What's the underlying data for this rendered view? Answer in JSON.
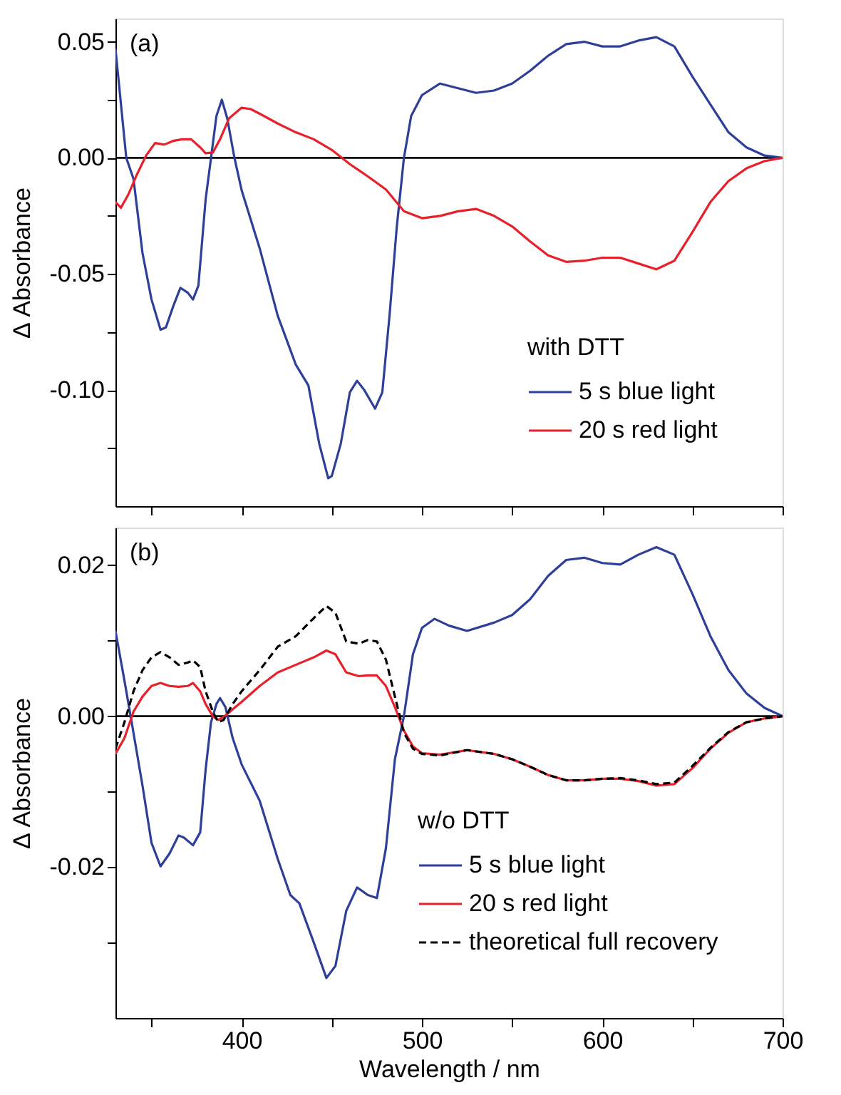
{
  "chart_data": [
    {
      "type": "line",
      "ylabel": "Δ Absorbance",
      "legend_title": "with DTT",
      "legend": "bottom right",
      "grid": false,
      "tick_labels": "y",
      "annotations": [
        "(a)"
      ],
      "xlim": [
        330,
        700
      ],
      "xticks": [
        {
          "value": 350,
          "label": null
        },
        400,
        {
          "value": 450,
          "label": null
        },
        500,
        {
          "value": 550,
          "label": null
        },
        600,
        {
          "value": 650,
          "label": null
        },
        700
      ],
      "ylim": [
        -0.15,
        0.06
      ],
      "yticks": [
        {
          "value": -0.125,
          "label": null
        },
        {
          "value": -0.1,
          "label": "-0.10"
        },
        {
          "value": -0.075,
          "label": null
        },
        {
          "value": -0.05,
          "label": "-0.05"
        },
        {
          "value": -0.025,
          "label": null
        },
        {
          "value": 0,
          "label": "0.00"
        },
        {
          "value": 0.025,
          "label": null
        },
        {
          "value": 0.05,
          "label": "0.05"
        }
      ],
      "ref_lines": [
        {
          "axis": "y",
          "value": 0,
          "color": "#000000"
        }
      ],
      "series": [
        {
          "name": "5 s blue light",
          "color": "#2e3f9a",
          "line_style": "solid",
          "x": [
            330,
            336,
            340,
            345,
            350,
            355,
            358,
            362,
            366,
            370,
            373,
            376,
            380,
            383,
            386,
            389,
            392,
            396,
            400,
            410,
            420,
            430,
            437,
            443,
            448,
            450,
            455,
            460,
            464,
            468,
            474,
            478,
            482,
            486,
            490,
            494,
            500,
            510,
            520,
            530,
            540,
            550,
            560,
            570,
            580,
            590,
            600,
            610,
            620,
            630,
            640,
            650,
            660,
            670,
            680,
            690,
            700
          ],
          "values": [
            0.047,
            0.0,
            -0.009,
            -0.041,
            -0.061,
            -0.074,
            -0.073,
            -0.064,
            -0.056,
            -0.058,
            -0.061,
            -0.055,
            -0.018,
            0.0,
            0.018,
            0.025,
            0.017,
            0.0,
            -0.014,
            -0.039,
            -0.068,
            -0.089,
            -0.098,
            -0.123,
            -0.138,
            -0.137,
            -0.123,
            -0.101,
            -0.096,
            -0.1,
            -0.108,
            -0.101,
            -0.068,
            -0.03,
            0.0,
            0.018,
            0.027,
            0.032,
            0.03,
            0.028,
            0.029,
            0.032,
            0.0375,
            0.044,
            0.049,
            0.05,
            0.048,
            0.048,
            0.0505,
            0.052,
            0.048,
            0.035,
            0.023,
            0.011,
            0.0045,
            0.001,
            0.0
          ]
        },
        {
          "name": "20 s red light",
          "color": "#e8202a",
          "line_style": "solid",
          "x": [
            330,
            333,
            337,
            342,
            347,
            352,
            357,
            362,
            367,
            372,
            377,
            380,
            384,
            388,
            393,
            400,
            405,
            410,
            420,
            430,
            440,
            450,
            460,
            470,
            480,
            490,
            500,
            510,
            520,
            530,
            540,
            550,
            560,
            570,
            580,
            590,
            600,
            610,
            620,
            630,
            640,
            650,
            660,
            670,
            680,
            690,
            700
          ],
          "values": [
            -0.019,
            -0.0215,
            -0.016,
            -0.007,
            0.001,
            0.0064,
            0.0057,
            0.0073,
            0.008,
            0.008,
            0.0045,
            0.002,
            0.0023,
            0.008,
            0.017,
            0.0216,
            0.021,
            0.019,
            0.0148,
            0.011,
            0.008,
            0.0034,
            -0.0027,
            -0.008,
            -0.0136,
            -0.023,
            -0.026,
            -0.025,
            -0.023,
            -0.022,
            -0.025,
            -0.0295,
            -0.036,
            -0.042,
            -0.0448,
            -0.0443,
            -0.043,
            -0.043,
            -0.0455,
            -0.048,
            -0.0443,
            -0.032,
            -0.019,
            -0.01,
            -0.0045,
            -0.0014,
            0.0
          ]
        }
      ]
    },
    {
      "type": "line",
      "xlabel": "Wavelength / nm",
      "ylabel": "Δ Absorbance",
      "legend_title": "w/o DTT",
      "legend": "bottom right",
      "grid": false,
      "annotations": [
        "(b)"
      ],
      "xlim": [
        330,
        700
      ],
      "xticks": [
        {
          "value": 350,
          "label": null
        },
        400,
        {
          "value": 450,
          "label": null
        },
        500,
        {
          "value": 550,
          "label": null
        },
        600,
        {
          "value": 650,
          "label": null
        },
        700
      ],
      "ylim": [
        -0.04,
        0.025
      ],
      "yticks": [
        {
          "value": -0.03,
          "label": null
        },
        {
          "value": -0.02,
          "label": "-0.02"
        },
        {
          "value": -0.01,
          "label": null
        },
        {
          "value": 0,
          "label": "0.00"
        },
        {
          "value": 0.01,
          "label": null
        },
        {
          "value": 0.02,
          "label": "0.02"
        }
      ],
      "ref_lines": [
        {
          "axis": "y",
          "value": 0,
          "color": "#000000"
        }
      ],
      "series": [
        {
          "name": "5 s blue light",
          "color": "#2e3f9a",
          "line_style": "solid",
          "x": [
            330,
            335,
            340,
            345,
            350,
            355,
            360,
            365,
            368,
            373,
            377,
            380,
            383,
            386,
            388,
            391,
            395,
            400,
            410,
            420,
            427,
            432,
            440,
            447,
            452,
            458,
            464,
            470,
            475,
            480,
            485,
            490,
            495,
            500,
            507,
            515,
            525,
            540,
            550,
            560,
            570,
            580,
            590,
            600,
            610,
            620,
            630,
            640,
            650,
            660,
            670,
            680,
            690,
            700
          ],
          "values": [
            0.0113,
            0.0047,
            -0.0022,
            -0.0092,
            -0.0168,
            -0.0199,
            -0.0182,
            -0.0158,
            -0.0161,
            -0.0171,
            -0.0154,
            -0.0071,
            -0.0008,
            0.0016,
            0.0024,
            0.0012,
            -0.0029,
            -0.0064,
            -0.0112,
            -0.0189,
            -0.0237,
            -0.0248,
            -0.03,
            -0.0347,
            -0.0331,
            -0.0258,
            -0.0227,
            -0.0237,
            -0.0241,
            -0.0175,
            -0.0057,
            0.0,
            0.0082,
            0.0117,
            0.0129,
            0.012,
            0.0113,
            0.0124,
            0.0134,
            0.0155,
            0.0186,
            0.0207,
            0.021,
            0.0203,
            0.0201,
            0.0214,
            0.0224,
            0.0214,
            0.0162,
            0.0106,
            0.0061,
            0.003,
            0.0011,
            0.0
          ]
        },
        {
          "name": "20 s red light",
          "color": "#e8202a",
          "line_style": "solid",
          "x": [
            330,
            335,
            340,
            345,
            350,
            355,
            360,
            365,
            370,
            373,
            377,
            380,
            384,
            387,
            390,
            395,
            400,
            410,
            420,
            430,
            440,
            447,
            452,
            458,
            465,
            470,
            475,
            480,
            485,
            490,
            495,
            500,
            510,
            525,
            540,
            550,
            560,
            570,
            580,
            590,
            600,
            610,
            620,
            630,
            640,
            650,
            660,
            670,
            680,
            690,
            700
          ],
          "values": [
            -0.005,
            -0.0029,
            0.0006,
            0.0026,
            0.004,
            0.0044,
            0.004,
            0.0039,
            0.004,
            0.0044,
            0.0033,
            0.0016,
            0.0,
            -0.0005,
            -0.0001,
            0.0009,
            0.0019,
            0.004,
            0.0058,
            0.0068,
            0.0078,
            0.0087,
            0.0082,
            0.0058,
            0.0053,
            0.0054,
            0.0054,
            0.004,
            0.0012,
            -0.0019,
            -0.004,
            -0.0049,
            -0.0051,
            -0.0045,
            -0.005,
            -0.0057,
            -0.0067,
            -0.0078,
            -0.0085,
            -0.0085,
            -0.0083,
            -0.0083,
            -0.0086,
            -0.0092,
            -0.009,
            -0.0069,
            -0.0043,
            -0.0022,
            -0.0008,
            -0.0003,
            0.0
          ]
        },
        {
          "name": "theoretical full recovery",
          "color": "#000000",
          "line_style": "dashed",
          "x": [
            330,
            335,
            340,
            345,
            350,
            355,
            360,
            365,
            370,
            373,
            377,
            380,
            384,
            387,
            390,
            395,
            400,
            410,
            420,
            430,
            440,
            447,
            452,
            458,
            465,
            470,
            475,
            480,
            485,
            490,
            495,
            500,
            510,
            525,
            540,
            550,
            560,
            570,
            580,
            590,
            600,
            610,
            620,
            630,
            640,
            650,
            660,
            670,
            680,
            690,
            700
          ],
          "values": [
            -0.0043,
            -0.0008,
            0.0033,
            0.0061,
            0.0078,
            0.0085,
            0.0078,
            0.0068,
            0.0071,
            0.0074,
            0.0065,
            0.0033,
            0.0006,
            -0.0008,
            -0.0005,
            0.0016,
            0.0033,
            0.0061,
            0.0092,
            0.0106,
            0.013,
            0.0146,
            0.0137,
            0.0099,
            0.0096,
            0.0101,
            0.0099,
            0.0075,
            0.0026,
            -0.0022,
            -0.0043,
            -0.005,
            -0.0052,
            -0.0045,
            -0.005,
            -0.0057,
            -0.0067,
            -0.0078,
            -0.0085,
            -0.0085,
            -0.0083,
            -0.0082,
            -0.0085,
            -0.009,
            -0.0088,
            -0.0066,
            -0.0042,
            -0.0021,
            -0.0008,
            -0.0003,
            0.0
          ]
        }
      ]
    }
  ]
}
